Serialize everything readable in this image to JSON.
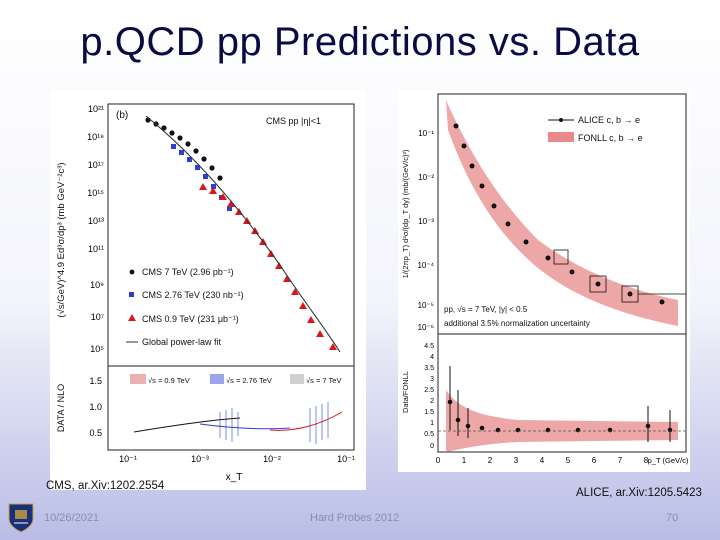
{
  "slide": {
    "title": "p.QCD pp Predictions vs. Data",
    "footer": {
      "date": "10/26/2021",
      "conference": "Hard Probes 2012",
      "page": "70"
    }
  },
  "figures": {
    "cms": {
      "citation": "CMS, ar.Xiv:1202.2554",
      "panel_label": "(b)",
      "header": "CMS  pp  |η|<1",
      "y_axis_label": "(√s/GeV)^4.9 Ed³σ/dp³ (mb GeV⁻²c³)",
      "y_ticks": [
        "10²¹",
        "10¹⁹",
        "10¹⁷",
        "10¹⁵",
        "10¹³",
        "10¹¹",
        "10⁹",
        "10⁷",
        "10⁵"
      ],
      "ratio_y_label": "DATA / NLO",
      "ratio_y_ticks": [
        "1.5",
        "1.0",
        "0.5"
      ],
      "x_axis_label": "x_T",
      "x_ticks": [
        "10⁻¹",
        "10⁻³",
        "10⁻²",
        "10⁻¹"
      ],
      "legend": [
        "CMS 7 TeV (2.96 pb⁻¹)",
        "CMS 2.76 TeV (230 nb⁻¹)",
        "CMS 0.9 TeV (231 μb⁻¹)",
        "Global power-law fit"
      ],
      "band_labels": [
        "√s = 0.9 TeV",
        "√s = 2.76 TeV",
        "√s = 7 TeV"
      ],
      "colors": {
        "s7": "#111111",
        "s276": "#2b3fd6",
        "s09": "#d81818",
        "fit": "#333333"
      }
    },
    "alice": {
      "citation": "ALICE, ar.Xiv:1205.5423",
      "y_axis_label": "1/(2πp_T) d²σ/(dp_T dy) (mb/(GeV/c)²)",
      "y_ticks": [
        "10⁻¹",
        "10⁻²",
        "10⁻³",
        "10⁻⁴",
        "10⁻⁵",
        "10⁻⁶"
      ],
      "legend": [
        "ALICE c, b → e",
        "FONLL c, b → e"
      ],
      "annotation_1": "pp, √s = 7 TeV, |y| < 0.5",
      "annotation_2": "additional 3.5% normalization uncertainty",
      "ratio_y_label": "Data/FONLL",
      "ratio_y_ticks": [
        "4.5",
        "4",
        "3.5",
        "3",
        "2.5",
        "2",
        "1.5",
        "1",
        "0.5",
        "0"
      ],
      "x_ticks": [
        "0",
        "1",
        "2",
        "3",
        "4",
        "5",
        "6",
        "7",
        "8"
      ],
      "x_axis_label": "p_T (GeV/c)",
      "colors": {
        "band": "#e88a8a",
        "data": "#111111"
      }
    }
  }
}
